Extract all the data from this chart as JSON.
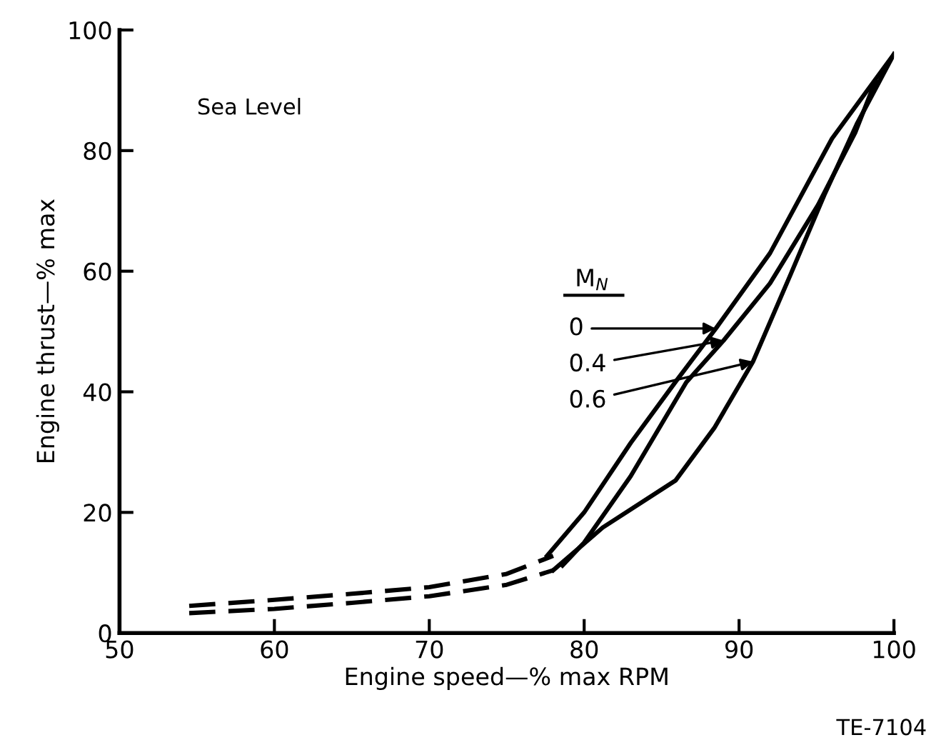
{
  "chart_data": {
    "type": "line",
    "xlabel": "Engine speed—% max RPM",
    "ylabel": "Engine thrust—% max",
    "legend_title": "M$_{N}$",
    "xlim": [
      50,
      100
    ],
    "xticks": [
      50,
      60,
      70,
      80,
      90,
      100
    ],
    "ylim": [
      0,
      100
    ],
    "yticks": [
      0,
      20,
      40,
      60,
      80,
      100
    ],
    "grid": false,
    "series": [
      {
        "color": "#000000",
        "line_style": "dashed",
        "x": [
          54.5,
          60,
          65,
          70,
          75,
          78
        ],
        "values": [
          4.5,
          5.5,
          6.5,
          7.6,
          9.8,
          12.8
        ]
      },
      {
        "color": "#000000",
        "line_style": "dashed",
        "x": [
          54.5,
          60,
          65,
          70,
          75,
          78
        ],
        "values": [
          3.3,
          4,
          5,
          6.1,
          8,
          10.4
        ]
      },
      {
        "color": "#000000",
        "line_style": "solid",
        "x": [
          77.6,
          80,
          83,
          86,
          88.5,
          92,
          96,
          100
        ],
        "values": [
          12.8,
          20,
          31.5,
          42,
          50.5,
          63,
          82,
          96
        ]
      },
      {
        "color": "#000000",
        "line_style": "solid",
        "x": [
          78.6,
          80,
          83,
          86.6,
          89,
          92,
          95.1,
          97.5,
          98.8
        ],
        "values": [
          11.2,
          15,
          26,
          41.6,
          48.5,
          58,
          71,
          83,
          91.5
        ]
      },
      {
        "color": "#000000",
        "line_style": "solid",
        "x": [
          78,
          81.2,
          85.9,
          88.4,
          90.9,
          93.3,
          95.5,
          97.6,
          100
        ],
        "values": [
          10.4,
          17.5,
          25.3,
          34,
          45,
          59.3,
          72.6,
          84.4,
          96
        ]
      }
    ],
    "annotations": [
      "Sea Level",
      {
        "text": "0",
        "x": 88.5,
        "y": 50.5
      },
      {
        "text": "0.4",
        "x": 89,
        "y": 48.5
      },
      {
        "text": "0.6",
        "x": 90.9,
        "y": 45
      },
      "TE-7104"
    ]
  }
}
